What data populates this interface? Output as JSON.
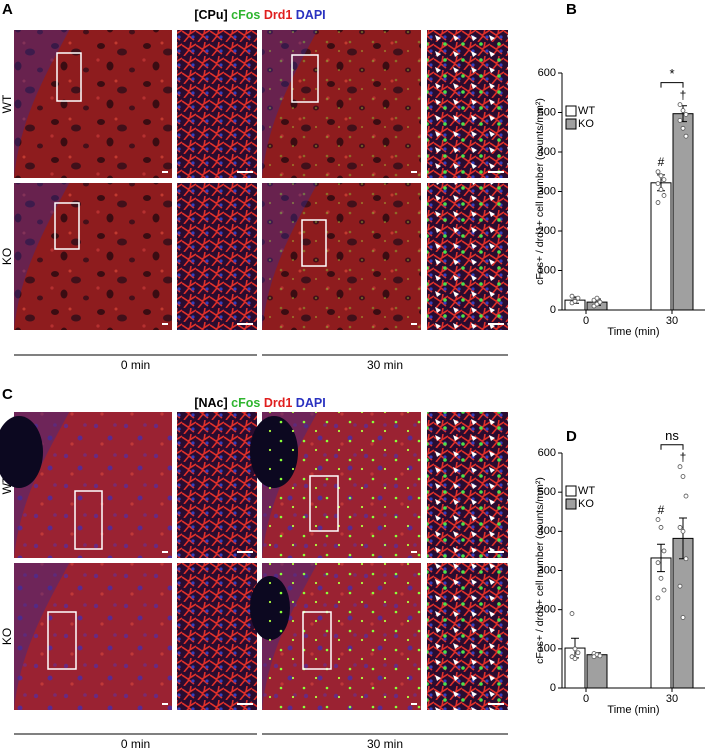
{
  "figure": {
    "panels": [
      "A",
      "B",
      "C",
      "D"
    ],
    "panel_a": {
      "region": "[CPu]",
      "stains": [
        "cFos",
        "Drd1",
        "DAPI"
      ],
      "rows": [
        "WT",
        "KO"
      ],
      "times": [
        "0 min",
        "30 min"
      ]
    },
    "panel_c": {
      "region": "[NAc]",
      "stains": [
        "cFos",
        "Drd1",
        "DAPI"
      ],
      "rows": [
        "WT",
        "KO"
      ],
      "times": [
        "0 min",
        "30 min"
      ]
    }
  },
  "chart_data": [
    {
      "type": "bar",
      "categories": [
        "0",
        "30"
      ],
      "x_label": "Time (min)",
      "y_label": "cFos+ / drd1+ cell number (counts/mm²)",
      "ylim": [
        0,
        600
      ],
      "yticks": [
        0,
        100,
        200,
        300,
        400,
        500,
        600
      ],
      "legend": "upper left",
      "series": [
        {
          "name": "WT",
          "color": "#ffffff",
          "values": [
            25,
            322
          ],
          "errors": [
            8,
            20
          ],
          "points": [
            [
              18,
              25,
              30,
              35,
              22
            ],
            [
              350,
              340,
              330,
              320,
              305,
              290,
              272
            ]
          ]
        },
        {
          "name": "KO",
          "color": "#a0a0a0",
          "values": [
            20,
            497
          ],
          "errors": [
            8,
            20
          ],
          "points": [
            [
              10,
              15,
              20,
              25,
              30
            ],
            [
              520,
              505,
              495,
              480,
              460,
              440
            ]
          ]
        }
      ],
      "annotations": [
        "#",
        "†",
        "*"
      ]
    },
    {
      "type": "bar",
      "categories": [
        "0",
        "30"
      ],
      "x_label": "Time (min)",
      "y_label": "cFos+ / drd1+ cell number (counts/mm²)",
      "ylim": [
        0,
        600
      ],
      "yticks": [
        0,
        100,
        200,
        300,
        400,
        500,
        600
      ],
      "legend": "upper left",
      "series": [
        {
          "name": "WT",
          "color": "#ffffff",
          "values": [
            102,
            332
          ],
          "errors": [
            25,
            35
          ],
          "points": [
            [
              190,
              100,
              90,
              80,
              75
            ],
            [
              430,
              410,
              350,
              320,
              280,
              250,
              230
            ]
          ]
        },
        {
          "name": "KO",
          "color": "#a0a0a0",
          "values": [
            85,
            382
          ],
          "errors": [
            5,
            52
          ],
          "points": [
            [
              88,
              85,
              82,
              80
            ],
            [
              565,
              540,
              490,
              410,
              400,
              330,
              260,
              180
            ]
          ]
        }
      ],
      "annotations": [
        "#",
        "†",
        "ns"
      ]
    }
  ]
}
